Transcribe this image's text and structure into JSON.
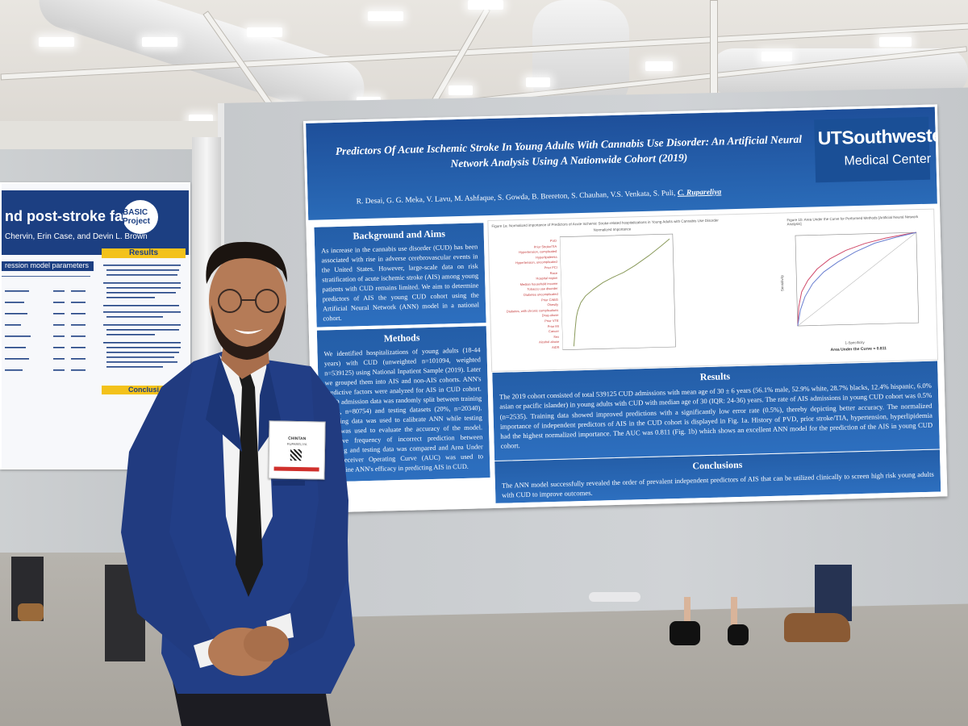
{
  "poster": {
    "title": "Predictors Of Acute Ischemic Stroke In Young Adults With Cannabis Use Disorder: An Artificial Neural Network Analysis Using A Nationwide Cohort (2019)",
    "authors": "R. Desai, G. G. Meka, V. Lavu, M. Ashfaque, S. Gowda, B. Brereton, S. Chauhan, V.S. Venkata, S. Puli,",
    "presenter": "C. Rupareliya",
    "logo_line1": "UTSouthwestern",
    "logo_line2": "Medical Center",
    "background_heading": "Background and Aims",
    "background_text": "As increase in the cannabis use disorder (CUD) has been associated with rise in adverse cerebrovascular events in the United States. However, large-scale data on risk stratification of acute ischemic stroke (AIS) among young patients with CUD remains limited. We aim to determine predictors of AIS the young CUD cohort using the Artificial Neural Network (ANN) model in a national cohort.",
    "methods_heading": "Methods",
    "methods_text": "We identified hospitalizations of young adults (18-44 years) with CUD (unweighted n=101094, weighted n=539125) using National Inpatient Sample (2019). Later we grouped them into AIS and non-AIS cohorts. ANN's predictive factors were analyzed for AIS in CUD cohort. CUD admission data was randomly split between training (80%, n=80754) and testing datasets (20%, n=20340). Training data was used to calibrate ANN while testing data was used to evaluate the accuracy of the model. Relative frequency of incorrect prediction between training and testing data was compared and Area Under the Receiver Operating Curve (AUC) was used to determine ANN's efficacy in predicting AIS in CUD.",
    "results_heading": "Results",
    "results_text": "The 2019 cohort consisted of total 539125 CUD admissions with mean age of 30 ± 6 years (56.1% male, 52.9% white, 28.7% blacks, 12.4% hispanic, 6.0% asian or pacific islander) in young adults with CUD with median age of 30 (IQR: 24-36) years. The rate of AIS admissions in young CUD cohort was 0.5% (n=2535). Training data showed improved predictions with a significantly low error rate (0.5%), thereby depicting better accuracy. The normalized importance of independent predictors of AIS in the CUD cohort is displayed in Fig. 1a. History of PVD, prior stroke/TIA, hypertension, hyperlipidemia had the highest normalized importance. The AUC was 0.811 (Fig. 1b) which shows an excellent ANN model for the prediction of the AIS in young CUD cohort.",
    "conclusions_heading": "Conclusions",
    "conclusions_text": "The ANN model successfully revealed the order of prevalent independent predictors of AIS that can be utilized clinically to screen high risk young adults with CUD to improve outcomes.",
    "fig1a_caption": "Figure 1a: Normalized importance of Predictors of Acute Ischemic Stroke-related hospitalizations in Young Adults with Cannabis Use Disorder",
    "fig1a_axis": "Normalized Importance",
    "fig1a_labels": [
      "PVD",
      "Prior Stroke/TIA",
      "Hypertension, complicated",
      "Hyperlipidemia",
      "Hypertension, uncomplicated",
      "Prior PCI",
      "Race",
      "Hospital region",
      "Median household income",
      "Tobacco use disorder",
      "Diabetes uncomplicated",
      "Prior CABG",
      "Obesity",
      "Diabetes, with chronic complications",
      "Drug abuse",
      "Prior VTE",
      "Prior MI",
      "Cancer",
      "Sex",
      "Alcohol abuse",
      "AIDS"
    ],
    "fig1b_caption": "Figure 1b: Area Under the Curve for Performed Methods [Artificial Neural Network Analysis]",
    "fig1b_xlabel": "1-Specificity",
    "fig1b_ylabel": "Sensitivity",
    "fig1b_auc": "Area Under the Curve = 0.811"
  },
  "left_poster": {
    "title": "nd post-stroke fatigue",
    "authors": "Chervin, Erin Case, and Devin L. Brown",
    "logo": "BASIC Project",
    "section_bar": "ression model parameters",
    "results_heading": "Results",
    "conclusions_heading": "Conclusi"
  },
  "badge": {
    "name": "CHINTAN",
    "surname": "RUPARELIYA"
  }
}
